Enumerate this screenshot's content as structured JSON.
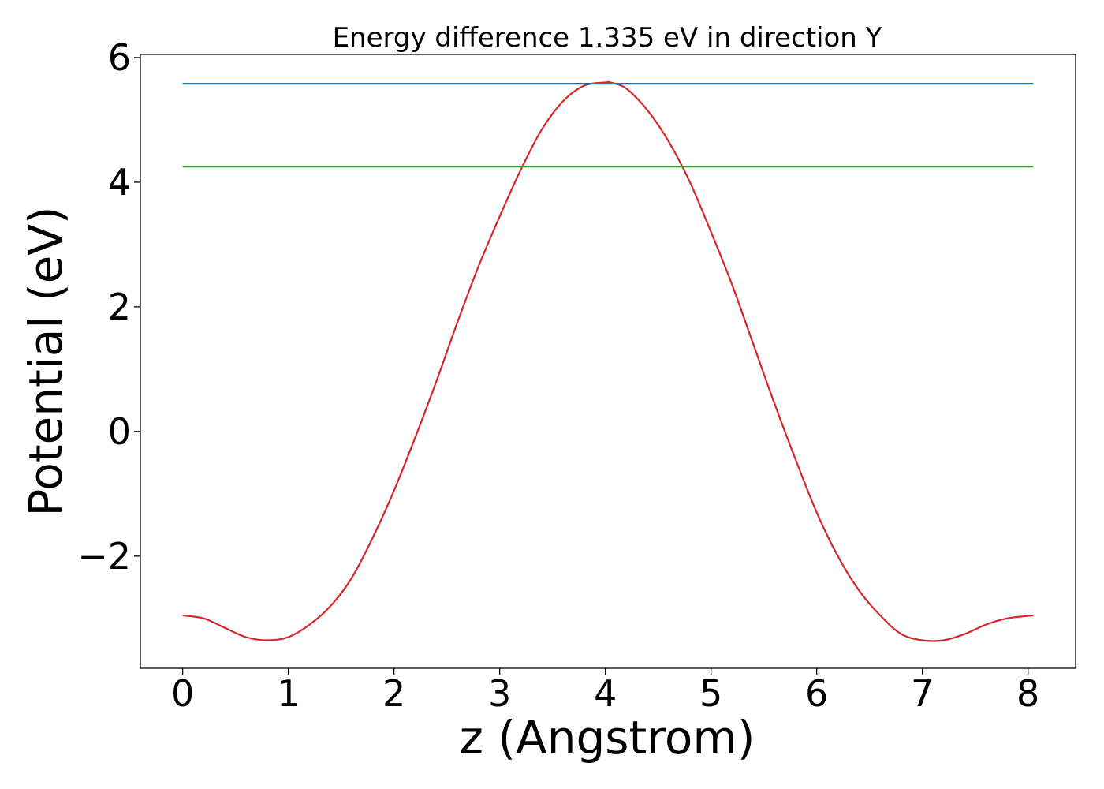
{
  "chart_data": {
    "type": "line",
    "title": "Energy difference 1.335 eV in direction Y",
    "xlabel": "z (Angstrom)",
    "ylabel": "Potential (eV)",
    "xlim": [
      -0.4,
      8.45
    ],
    "ylim": [
      -3.8,
      6.05
    ],
    "xticks": [
      0,
      1,
      2,
      3,
      4,
      5,
      6,
      7,
      8
    ],
    "xtick_labels": [
      "0",
      "1",
      "2",
      "3",
      "4",
      "5",
      "6",
      "7",
      "8"
    ],
    "yticks": [
      -2,
      0,
      2,
      4,
      6
    ],
    "ytick_labels": [
      "−2",
      "0",
      "2",
      "4",
      "6"
    ],
    "grid": false,
    "series": [
      {
        "color": "#d62728",
        "x": [
          0.0,
          0.2,
          0.4,
          0.6,
          0.8,
          1.0,
          1.2,
          1.4,
          1.6,
          1.8,
          2.0,
          2.2,
          2.4,
          2.6,
          2.8,
          3.0,
          3.2,
          3.4,
          3.6,
          3.8,
          4.0,
          4.05,
          4.2,
          4.4,
          4.6,
          4.8,
          5.0,
          5.2,
          5.4,
          5.6,
          5.8,
          6.0,
          6.2,
          6.4,
          6.6,
          6.8,
          7.0,
          7.2,
          7.4,
          7.6,
          7.8,
          8.05
        ],
        "y": [
          -2.95,
          -3.0,
          -3.15,
          -3.3,
          -3.35,
          -3.3,
          -3.1,
          -2.8,
          -2.35,
          -1.7,
          -0.95,
          -0.1,
          0.8,
          1.75,
          2.65,
          3.45,
          4.2,
          4.85,
          5.3,
          5.55,
          5.6,
          5.6,
          5.5,
          5.15,
          4.65,
          4.0,
          3.2,
          2.35,
          1.4,
          0.45,
          -0.45,
          -1.3,
          -2.0,
          -2.55,
          -2.95,
          -3.25,
          -3.35,
          -3.35,
          -3.25,
          -3.1,
          -3.0,
          -2.95
        ]
      },
      {
        "color": "#1f77b4",
        "x": [
          0.0,
          8.05
        ],
        "y": [
          5.58,
          5.58
        ]
      },
      {
        "color": "#2ca02c",
        "x": [
          0.0,
          8.05
        ],
        "y": [
          4.25,
          4.25
        ]
      }
    ]
  }
}
